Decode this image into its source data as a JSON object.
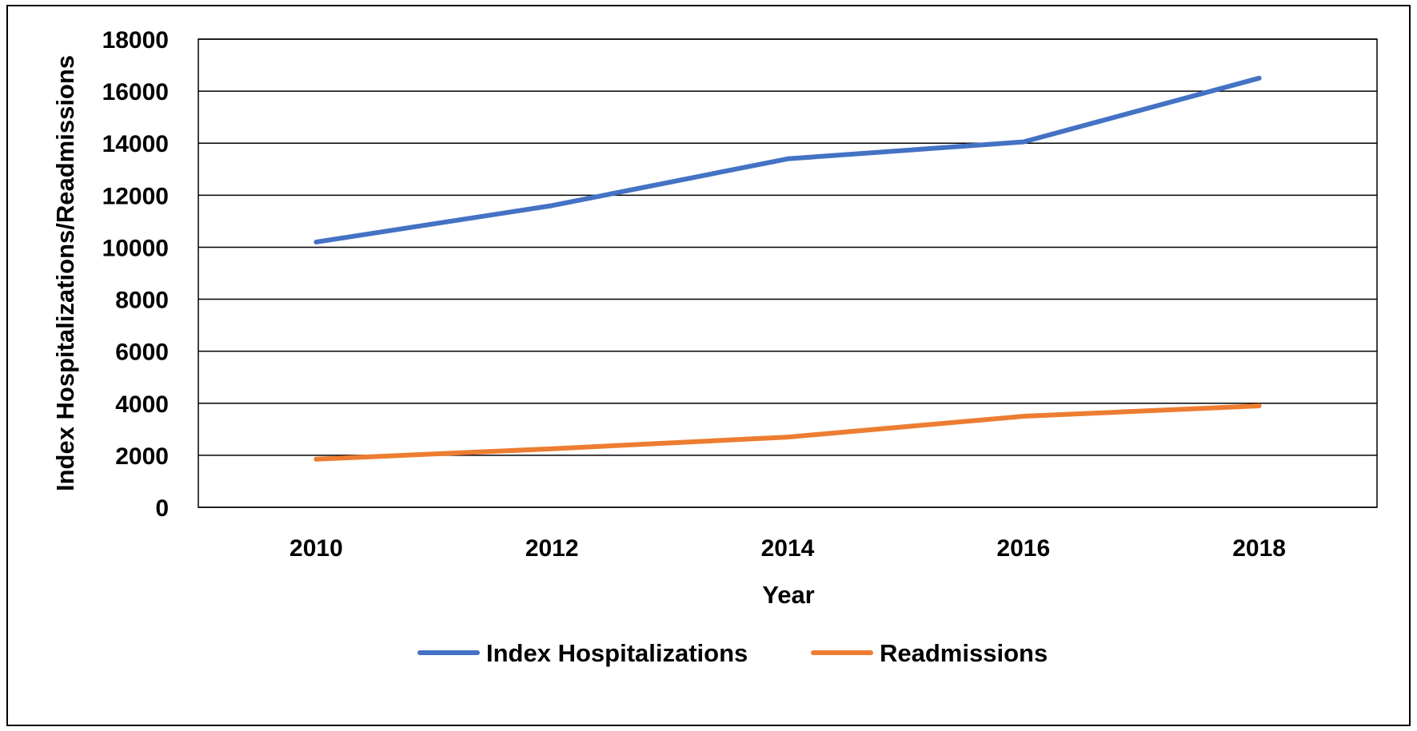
{
  "chart_data": {
    "type": "line",
    "title": "",
    "xlabel": "Year",
    "ylabel": "Index Hospitalizations/Readmissions",
    "x": [
      2010,
      2012,
      2014,
      2016,
      2018
    ],
    "x_tick_labels": [
      "2010",
      "2012",
      "2014",
      "2016",
      "2018"
    ],
    "y_ticks": [
      0,
      2000,
      4000,
      6000,
      8000,
      10000,
      12000,
      14000,
      16000,
      18000
    ],
    "y_tick_labels": [
      "0",
      "2000",
      "4000",
      "6000",
      "8000",
      "10000",
      "12000",
      "14000",
      "16000",
      "18000"
    ],
    "xlim": [
      2009,
      2019
    ],
    "ylim": [
      0,
      18000
    ],
    "grid": true,
    "legend_position": "bottom",
    "series": [
      {
        "name": "Index Hospitalizations",
        "color": "#4472C4",
        "values": [
          10200,
          11600,
          13400,
          14050,
          16500
        ]
      },
      {
        "name": "Readmissions",
        "color": "#ED7D31",
        "values": [
          1850,
          2250,
          2700,
          3500,
          3900
        ]
      }
    ]
  }
}
